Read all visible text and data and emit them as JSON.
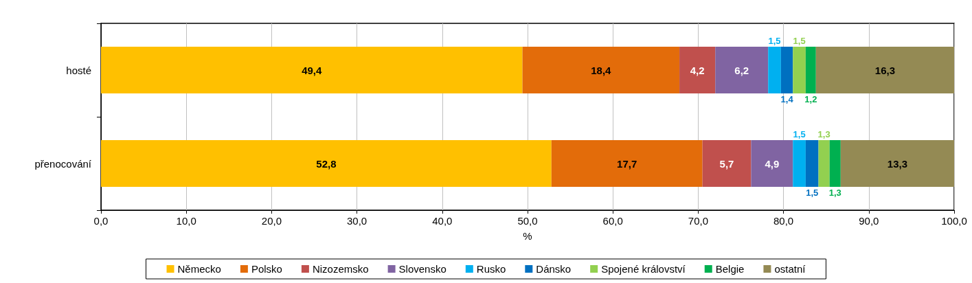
{
  "chart_data": {
    "type": "bar",
    "orientation": "horizontal",
    "stacked": true,
    "categories": [
      "hosté",
      "přenocování"
    ],
    "xlabel": "%",
    "xlim": [
      0,
      100
    ],
    "xticks": [
      {
        "value": 0,
        "label": "0,0"
      },
      {
        "value": 10,
        "label": "10,0"
      },
      {
        "value": 20,
        "label": "20,0"
      },
      {
        "value": 30,
        "label": "30,0"
      },
      {
        "value": 40,
        "label": "40,0"
      },
      {
        "value": 50,
        "label": "50,0"
      },
      {
        "value": 60,
        "label": "60,0"
      },
      {
        "value": 70,
        "label": "70,0"
      },
      {
        "value": 80,
        "label": "80,0"
      },
      {
        "value": 90,
        "label": "90,0"
      },
      {
        "value": 100,
        "label": "100,0"
      }
    ],
    "grid": "x",
    "legend": "bottom",
    "series": [
      {
        "name": "Německo",
        "color": "#ffc000",
        "values": [
          49.4,
          52.8
        ],
        "value_labels": [
          "49,4",
          "52,8"
        ]
      },
      {
        "name": "Polsko",
        "color": "#e36c0a",
        "values": [
          18.4,
          17.7
        ],
        "value_labels": [
          "18,4",
          "17,7"
        ]
      },
      {
        "name": "Nizozemsko",
        "color": "#c0504d",
        "values": [
          4.2,
          5.7
        ],
        "value_labels": [
          "4,2",
          "5,7"
        ]
      },
      {
        "name": "Slovensko",
        "color": "#8064a2",
        "values": [
          6.2,
          4.9
        ],
        "value_labels": [
          "6,2",
          "4,9"
        ]
      },
      {
        "name": "Rusko",
        "color": "#00b0f0",
        "values": [
          1.5,
          1.5
        ],
        "value_labels": [
          "1,5",
          "1,5"
        ]
      },
      {
        "name": "Dánsko",
        "color": "#0070c0",
        "values": [
          1.4,
          1.5
        ],
        "value_labels": [
          "1,4",
          "1,5"
        ]
      },
      {
        "name": "Spojené království",
        "color": "#92d050",
        "values": [
          1.5,
          1.3
        ],
        "value_labels": [
          "1,5",
          "1,3"
        ]
      },
      {
        "name": "Belgie",
        "color": "#00b050",
        "values": [
          1.2,
          1.3
        ],
        "value_labels": [
          "1,2",
          "1,3"
        ]
      },
      {
        "name": "ostatní",
        "color": "#948a54",
        "values": [
          16.3,
          13.3
        ],
        "value_labels": [
          "16,3",
          "13,3"
        ]
      }
    ]
  }
}
